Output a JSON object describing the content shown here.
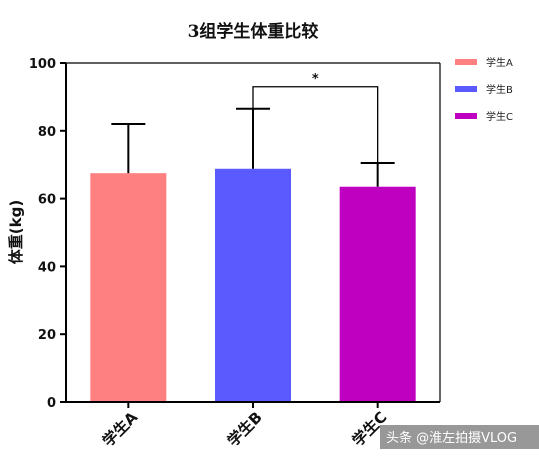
{
  "chart_data": {
    "type": "bar",
    "title": "3组学生体重比较",
    "ylabel": "体重(kg)",
    "xlabel": "",
    "ylim": [
      0,
      100
    ],
    "yticks": [
      0,
      20,
      40,
      60,
      80,
      100
    ],
    "categories": [
      "学生A",
      "学生B",
      "学生C"
    ],
    "values": [
      67.5,
      68.8,
      63.5
    ],
    "error_upper": [
      82,
      86.5,
      70.5
    ],
    "colors": [
      "#ff8080",
      "#5a5aff",
      "#c000c0"
    ],
    "legend": {
      "placement": "right-top",
      "entries": [
        "学生A",
        "学生B",
        "学生C"
      ]
    },
    "significance": {
      "from": "学生B",
      "to": "学生C",
      "label": "*"
    },
    "grid": false
  },
  "watermark": "头条 @淮左拍摄VLOG"
}
